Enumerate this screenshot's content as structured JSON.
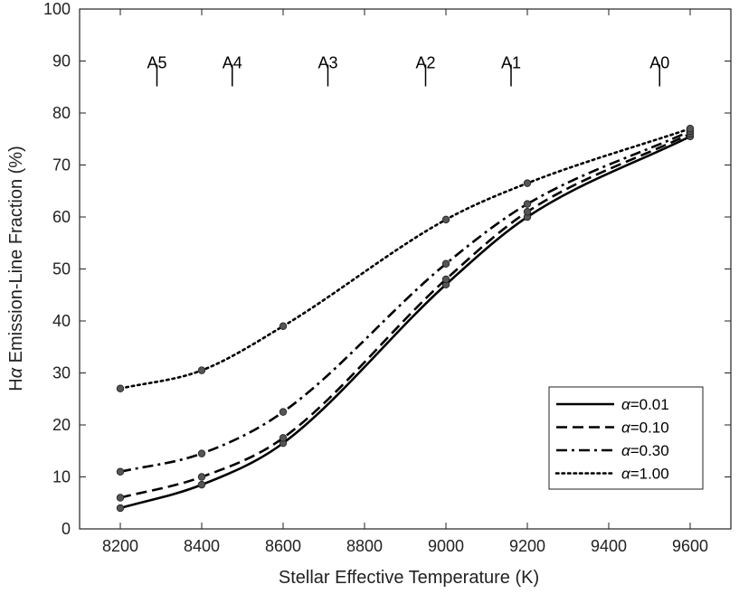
{
  "chart_data": {
    "type": "line",
    "xlabel": "Stellar Effective Temperature (K)",
    "ylabel_prefix": "H",
    "ylabel_symbol": "α",
    "ylabel_suffix": " Emission-Line Fraction (%)",
    "xlim": [
      8100,
      9700
    ],
    "ylim": [
      0,
      100
    ],
    "xticks": [
      8200,
      8400,
      8600,
      8800,
      9000,
      9200,
      9400,
      9600
    ],
    "yticks": [
      0,
      10,
      20,
      30,
      40,
      50,
      60,
      70,
      80,
      90,
      100
    ],
    "grid": false,
    "legend_position": "bottom-right",
    "x": [
      8200,
      8400,
      8600,
      9000,
      9200,
      9600
    ],
    "series": [
      {
        "name": "α=0.01",
        "style": "solid",
        "values": [
          4.0,
          8.5,
          16.5,
          47.0,
          60.0,
          75.5
        ]
      },
      {
        "name": "α=0.10",
        "style": "dashed",
        "values": [
          6.0,
          10.0,
          17.5,
          48.0,
          61.0,
          76.0
        ]
      },
      {
        "name": "α=0.30",
        "style": "dashdot",
        "values": [
          11.0,
          14.5,
          22.5,
          51.0,
          62.5,
          76.5
        ]
      },
      {
        "name": "α=1.00",
        "style": "dotted",
        "values": [
          27.0,
          30.5,
          39.0,
          59.5,
          66.5,
          77.0
        ]
      }
    ],
    "spectral_types": [
      {
        "label": "A5",
        "x": 8290
      },
      {
        "label": "A4",
        "x": 8475
      },
      {
        "label": "A3",
        "x": 8710
      },
      {
        "label": "A2",
        "x": 8950
      },
      {
        "label": "A1",
        "x": 9160
      },
      {
        "label": "A0",
        "x": 9525
      }
    ],
    "spectral_marker_y": 90,
    "colors": {
      "line": "#000000",
      "marker": "#555555",
      "axis": "#222222"
    }
  }
}
